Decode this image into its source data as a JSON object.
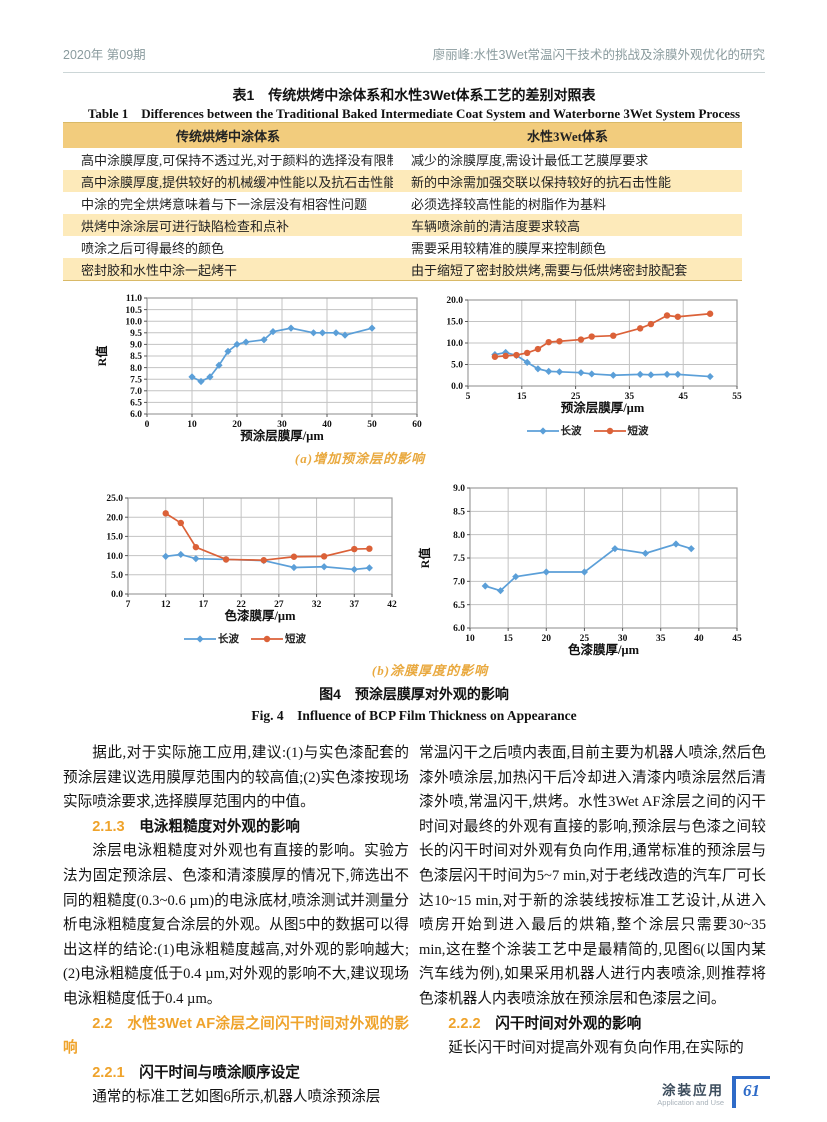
{
  "header": {
    "left": "2020年 第09期",
    "right": "廖丽峰:水性3Wet常温闪干技术的挑战及涂膜外观优化的研究"
  },
  "table": {
    "title_zh": "表1　传统烘烤中涂体系和水性3Wet体系工艺的差别对照表",
    "title_en": "Table 1　Differences between the Traditional Baked Intermediate Coat System and Waterborne 3Wet System Process",
    "headers": [
      "传统烘烤中涂体系",
      "水性3Wet体系"
    ],
    "rows": [
      [
        "高中涂膜厚度,可保持不透过光,对于颜料的选择没有限制",
        "减少的涂膜厚度,需设计最低工艺膜厚要求"
      ],
      [
        "高中涂膜厚度,提供较好的机械缓冲性能以及抗石击性能",
        "新的中涂需加强交联以保持较好的抗石击性能"
      ],
      [
        "中涂的完全烘烤意味着与下一涂层没有相容性问题",
        "必须选择较高性能的树脂作为基料"
      ],
      [
        "烘烤中涂涂层可进行缺陷检查和点补",
        "车辆喷涂前的清洁度要求较高"
      ],
      [
        "喷涂之后可得最终的颜色",
        "需要采用较精准的膜厚来控制颜色"
      ],
      [
        "密封胶和水性中涂一起烤干",
        "由于缩短了密封胶烘烤,需要与低烘烤密封胶配套"
      ]
    ]
  },
  "figure": {
    "caption_a": "(a)增加预涂层的影响",
    "caption_b": "(b)涂膜厚度的影响",
    "caption_zh": "图4　预涂层膜厚对外观的影响",
    "caption_en": "Fig. 4　Influence of BCP Film Thickness on Appearance"
  },
  "chart_data": [
    {
      "type": "line",
      "xlabel": "预涂层膜厚/µm",
      "ylabel": "R值",
      "xlim": [
        0,
        60
      ],
      "xstep": 10,
      "ylim": [
        6.0,
        11.0
      ],
      "ystep": 0.5,
      "ydec": 1,
      "grid": "both",
      "legend": false,
      "legend_position": "none",
      "series": [
        {
          "name": "R值",
          "color": "blue",
          "marker": "diamond",
          "x": [
            10,
            12,
            14,
            16,
            18,
            20,
            22,
            26,
            28,
            32,
            37,
            39,
            42,
            44,
            50
          ],
          "y": [
            7.6,
            7.4,
            7.6,
            8.1,
            8.7,
            9.0,
            9.1,
            9.2,
            9.55,
            9.7,
            9.5,
            9.5,
            9.5,
            9.4,
            9.7
          ]
        }
      ]
    },
    {
      "type": "line",
      "xlabel": "预涂层膜厚/µm",
      "ylabel": "",
      "xlim": [
        5,
        55
      ],
      "xstep": 10,
      "ylim": [
        0.0,
        20.0
      ],
      "ystep": 5,
      "ydec": 1,
      "grid": "both",
      "legend": true,
      "legend_position": "bottom",
      "series": [
        {
          "name": "长波",
          "color": "blue",
          "marker": "diamond",
          "x": [
            10,
            12,
            14,
            16,
            18,
            20,
            22,
            26,
            28,
            32,
            37,
            39,
            42,
            44,
            50
          ],
          "y": [
            7.3,
            7.8,
            7.1,
            5.5,
            4.0,
            3.4,
            3.3,
            3.1,
            2.8,
            2.5,
            2.7,
            2.6,
            2.7,
            2.7,
            2.2
          ]
        },
        {
          "name": "短波",
          "color": "orange",
          "marker": "circle",
          "x": [
            10,
            12,
            14,
            16,
            18,
            20,
            22,
            26,
            28,
            32,
            37,
            39,
            42,
            44,
            50
          ],
          "y": [
            6.8,
            7.0,
            7.2,
            7.7,
            8.6,
            10.2,
            10.4,
            10.8,
            11.5,
            11.7,
            13.4,
            14.4,
            16.4,
            16.1,
            16.8
          ]
        }
      ]
    },
    {
      "type": "line",
      "xlabel": "色漆膜厚/µm",
      "ylabel": "",
      "xlim": [
        7,
        42
      ],
      "xstep": 5,
      "ylim": [
        0.0,
        25.0
      ],
      "ystep": 5,
      "ydec": 1,
      "grid": "both",
      "legend": true,
      "legend_position": "bottom",
      "series": [
        {
          "name": "长波",
          "color": "blue",
          "marker": "diamond",
          "x": [
            12,
            14,
            16,
            20,
            25,
            29,
            33,
            37,
            39
          ],
          "y": [
            9.8,
            10.3,
            9.2,
            9.0,
            8.7,
            6.9,
            7.1,
            6.4,
            6.8
          ]
        },
        {
          "name": "短波",
          "color": "orange",
          "marker": "circle",
          "x": [
            12,
            14,
            16,
            20,
            25,
            29,
            33,
            37,
            39
          ],
          "y": [
            21.0,
            18.5,
            12.2,
            9.0,
            8.8,
            9.7,
            9.8,
            11.7,
            11.8
          ]
        }
      ]
    },
    {
      "type": "line",
      "xlabel": "色漆膜厚/µm",
      "ylabel": "R值",
      "xlim": [
        10,
        45
      ],
      "xstep": 5,
      "ylim": [
        6.0,
        9.0
      ],
      "ystep": 0.5,
      "ydec": 1,
      "grid": "both",
      "legend": false,
      "legend_position": "none",
      "series": [
        {
          "name": "R值",
          "color": "blue",
          "marker": "diamond",
          "x": [
            12,
            14,
            16,
            20,
            25,
            29,
            33,
            37,
            39
          ],
          "y": [
            6.9,
            6.8,
            7.1,
            7.2,
            7.2,
            7.7,
            7.6,
            7.8,
            7.7
          ]
        }
      ]
    }
  ],
  "body": {
    "left": {
      "p1": "据此,对于实际施工应用,建议:(1)与实色漆配套的预涂层建议选用膜厚范围内的较高值;(2)实色漆按现场实际喷涂要求,选择膜厚范围内的中值。",
      "h1_num": "2.1.3",
      "h1_text": "电泳粗糙度对外观的影响",
      "p2": "涂层电泳粗糙度对外观也有直接的影响。实验方法为固定预涂层、色漆和清漆膜厚的情况下,筛选出不同的粗糙度(0.3~0.6 µm)的电泳底材,喷涂测试并测量分析电泳粗糙度复合涂层的外观。从图5中的数据可以得出这样的结论:(1)电泳粗糙度越高,对外观的影响越大;(2)电泳粗糙度低于0.4 µm,对外观的影响不大,建议现场电泳粗糙度低于0.4 µm。",
      "h2_num": "2.2",
      "h2_text": "水性3Wet AF涂层之间闪干时间对外观的影响",
      "h3_num": "2.2.1",
      "h3_text": "闪干时间与喷涂顺序设定",
      "p3": "通常的标准工艺如图6所示,机器人喷涂预涂层"
    },
    "right": {
      "p1": "常温闪干之后喷内表面,目前主要为机器人喷涂,然后色漆外喷涂层,加热闪干后冷却进入清漆内喷涂层然后清漆外喷,常温闪干,烘烤。水性3Wet AF涂层之间的闪干时间对最终的外观有直接的影响,预涂层与色漆之间较长的闪干时间对外观有负向作用,通常标准的预涂层与色漆层闪干时间为5~7 min,对于老线改造的汽车厂可长达10~15 min,对于新的涂装线按标准工艺设计,从进入喷房开始到进入最后的烘箱,整个涂层只需要30~35 min,这在整个涂装工艺中是最精简的,见图6(以国内某汽车线为例),如果采用机器人进行内表喷涂,则推荐将色漆机器人内表喷涂放在预涂层和色漆层之间。",
      "h1_num": "2.2.2",
      "h1_text": "闪干时间对外观的影响",
      "p2": "延长闪干时间对提高外观有负向作用,在实际的"
    }
  },
  "footer": {
    "label_zh": "涂装应用",
    "label_en": "Application and Use",
    "page_number": "61"
  },
  "colors": {
    "blue": "#5b9fd8",
    "orange": "#db6138",
    "accent_orange": "#efa32b",
    "caption_orange": "#e9a93f",
    "table_header_bg": "#f2cc7d",
    "table_stripe_bg": "#fdeaba",
    "footer_blue": "#2e6bc8"
  }
}
